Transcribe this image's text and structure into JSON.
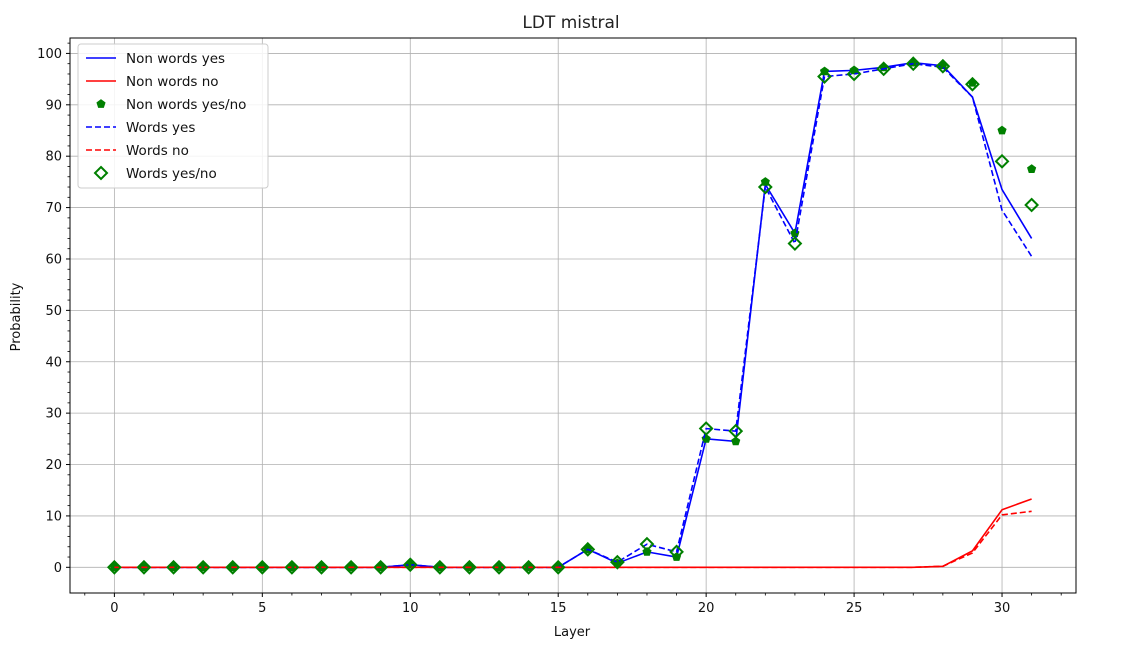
{
  "chart_data": {
    "type": "line",
    "title": "LDT mistral",
    "xlabel": "Layer",
    "ylabel": "Probability",
    "xlim": [
      -1.5,
      32.5
    ],
    "ylim": [
      -5,
      103
    ],
    "xticks": [
      0,
      5,
      10,
      15,
      20,
      25,
      30
    ],
    "yticks": [
      0,
      10,
      20,
      30,
      40,
      50,
      60,
      70,
      80,
      90,
      100
    ],
    "grid": true,
    "legend_position": "top-left",
    "x": [
      0,
      1,
      2,
      3,
      4,
      5,
      6,
      7,
      8,
      9,
      10,
      11,
      12,
      13,
      14,
      15,
      16,
      17,
      18,
      19,
      20,
      21,
      22,
      23,
      24,
      25,
      26,
      27,
      28,
      29,
      30,
      31
    ],
    "series": [
      {
        "name": "Non words yes",
        "style": "line-solid",
        "color": "#0000ff",
        "values": [
          0,
          0,
          0,
          0,
          0,
          0,
          0,
          0,
          0,
          0,
          0.5,
          0,
          0,
          0,
          0,
          0,
          3.5,
          0.8,
          3,
          2,
          25,
          24.5,
          74.5,
          65,
          96.5,
          96.7,
          97.3,
          98.2,
          97.6,
          91.5,
          73.5,
          64
        ]
      },
      {
        "name": "Non words no",
        "style": "line-solid",
        "color": "#ff0000",
        "values": [
          0,
          0,
          0,
          0,
          0,
          0,
          0,
          0,
          0,
          0,
          0,
          0,
          0,
          0,
          0,
          0,
          0,
          0,
          0,
          0,
          0,
          0,
          0,
          0,
          0,
          0,
          0,
          0,
          0.2,
          3.2,
          11.2,
          13.3
        ]
      },
      {
        "name": "Non words yes/no",
        "style": "marker-pentagon",
        "color": "#008000",
        "values": [
          0,
          0,
          0,
          0,
          0,
          0,
          0,
          0,
          0,
          0,
          0.5,
          0,
          0,
          0,
          0,
          0,
          3.5,
          0.8,
          3,
          2,
          25,
          24.5,
          75,
          65,
          96.5,
          96.7,
          97.3,
          98.2,
          97.7,
          94.3,
          85,
          77.5
        ]
      },
      {
        "name": "Words yes",
        "style": "line-dashed",
        "color": "#0000ff",
        "values": [
          0,
          0,
          0,
          0,
          0,
          0,
          0,
          0,
          0,
          0,
          0.5,
          0,
          0,
          0,
          0,
          0,
          3.5,
          1,
          4.5,
          3,
          27,
          26.5,
          74,
          63,
          95.5,
          96,
          97,
          98,
          97.3,
          91.5,
          69.5,
          60.5
        ]
      },
      {
        "name": "Words no",
        "style": "line-dashed",
        "color": "#ff0000",
        "values": [
          0,
          0,
          0,
          0,
          0,
          0,
          0,
          0,
          0,
          0,
          0,
          0,
          0,
          0,
          0,
          0,
          0,
          0,
          0,
          0,
          0,
          0,
          0,
          0,
          0,
          0,
          0,
          0,
          0.2,
          2.8,
          10.2,
          10.9
        ]
      },
      {
        "name": "Words yes/no",
        "style": "marker-diamond",
        "color": "#008000",
        "values": [
          0,
          0,
          0,
          0,
          0,
          0,
          0,
          0,
          0,
          0,
          0.5,
          0,
          0,
          0,
          0,
          0,
          3.5,
          1,
          4.5,
          3,
          27,
          26.5,
          74,
          63,
          95.5,
          96,
          97,
          98,
          97.5,
          94,
          79,
          70.5
        ]
      }
    ]
  }
}
